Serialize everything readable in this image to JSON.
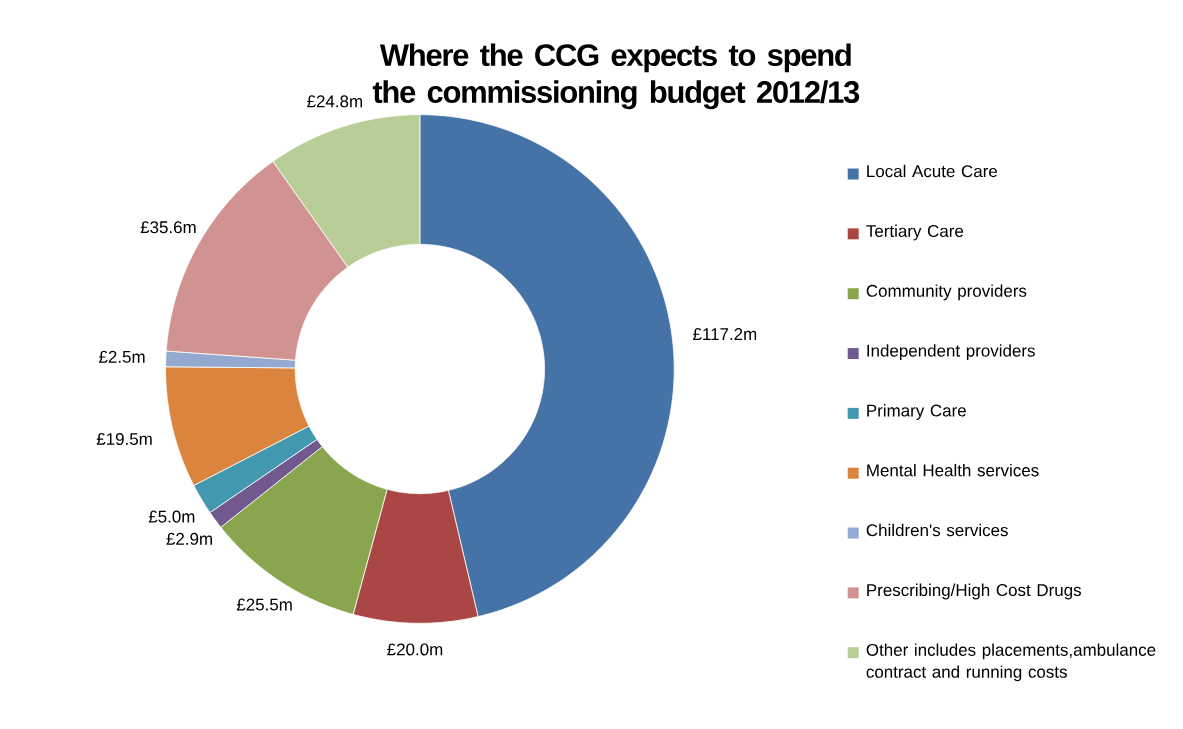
{
  "chart_data": {
    "type": "donut",
    "title": "Where the CCG expects to spend the commissioning budget 2012/13",
    "categories": [
      "Local Acute Care",
      "Tertiary Care",
      "Community providers",
      "Independent providers",
      "Primary Care",
      "Mental Health services",
      "Children's services",
      "Prescribing/High Cost Drugs",
      "Other includes placements,ambulance contract and running costs"
    ],
    "values": [
      117.2,
      20.0,
      25.5,
      2.9,
      5.0,
      19.5,
      2.5,
      35.6,
      24.8
    ],
    "colors": [
      "#4572a7",
      "#aa4643",
      "#89a54e",
      "#71588f",
      "#4198af",
      "#db843d",
      "#93a9cf",
      "#d19392",
      "#b9cd96"
    ],
    "value_labels": [
      "£117.2m",
      "£20.0m",
      "£25.5m",
      "£2.9m",
      "£5.0m",
      "£19.5m",
      "£2.5m",
      "£35.6m",
      "£24.8m"
    ],
    "legend": "right"
  }
}
